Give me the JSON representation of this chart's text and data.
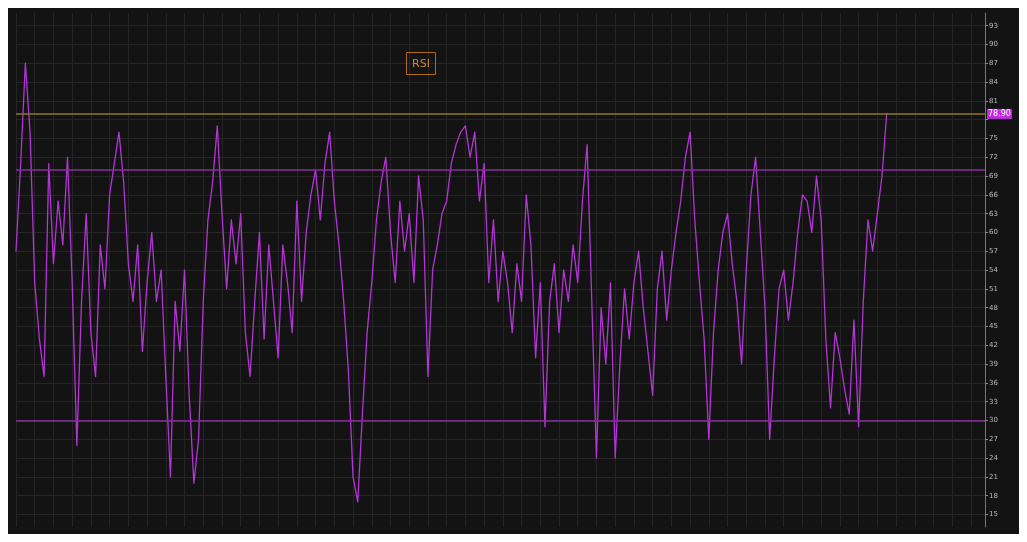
{
  "chart_data": {
    "type": "line",
    "title": "RSI",
    "categories": [
      null,
      null,
      null,
      null,
      null,
      null,
      null,
      null,
      null,
      null,
      null,
      null,
      null,
      null,
      null,
      null,
      null,
      null,
      null,
      null,
      null,
      null,
      null,
      null,
      null,
      null,
      null,
      null,
      null,
      null,
      null,
      null,
      null,
      null,
      null,
      null,
      null,
      null,
      null,
      null,
      null,
      null,
      null,
      null,
      null,
      null,
      null,
      null,
      null,
      null,
      null,
      null,
      null,
      null,
      null,
      null,
      null,
      null,
      null,
      null,
      null,
      null,
      null,
      null,
      null,
      null,
      null,
      null,
      null,
      null,
      null,
      null,
      null,
      null,
      null,
      null,
      null,
      null,
      null,
      null,
      null,
      null,
      null,
      null,
      null,
      null,
      null,
      null,
      null,
      null,
      null,
      null,
      null,
      null,
      null,
      null,
      null,
      null,
      null,
      null,
      null,
      null,
      null,
      null,
      null,
      null,
      null,
      null,
      null,
      null,
      null,
      null,
      null,
      null,
      null,
      null,
      null,
      null,
      null,
      null,
      null,
      null,
      null,
      null,
      null,
      null,
      null,
      null,
      null,
      null,
      null,
      null,
      null,
      null,
      null,
      null,
      null,
      null,
      null,
      null,
      null,
      null,
      null,
      null,
      null,
      null,
      null,
      null,
      null,
      null,
      null,
      null,
      null,
      null,
      null,
      null,
      null,
      null,
      null,
      null,
      null,
      null,
      null,
      null,
      null,
      null,
      null,
      null,
      null,
      null,
      null,
      null,
      null,
      null,
      null,
      null,
      null,
      null,
      null,
      null,
      null,
      null,
      null,
      null,
      null,
      null,
      null
    ],
    "series": [
      {
        "color": "#b434d6",
        "values": [
          57,
          71,
          87,
          76,
          52,
          43,
          37,
          71,
          55,
          65,
          58,
          72,
          52,
          26,
          49,
          63,
          44,
          37,
          58,
          51,
          66,
          71,
          76,
          68,
          55,
          49,
          58,
          41,
          52,
          60,
          49,
          54,
          37,
          21,
          49,
          41,
          54,
          34,
          20,
          27,
          49,
          62,
          68,
          77,
          63,
          51,
          62,
          55,
          63,
          44,
          37,
          49,
          60,
          43,
          58,
          49,
          40,
          58,
          52,
          44,
          65,
          49,
          60,
          66,
          70,
          62,
          71,
          76,
          65,
          58,
          49,
          38,
          21,
          17,
          31,
          44,
          52,
          62,
          68,
          72,
          60,
          52,
          65,
          57,
          63,
          52,
          69,
          62,
          37,
          54,
          58,
          63,
          65,
          71,
          74,
          76,
          77,
          72,
          76,
          65,
          71,
          52,
          62,
          49,
          57,
          52,
          44,
          55,
          49,
          66,
          58,
          40,
          52,
          29,
          49,
          55,
          44,
          54,
          49,
          58,
          52,
          65,
          74,
          49,
          24,
          48,
          39,
          52,
          24,
          39,
          51,
          43,
          52,
          57,
          48,
          41,
          34,
          51,
          57,
          46,
          54,
          60,
          65,
          72,
          76,
          62,
          52,
          43,
          27,
          44,
          54,
          60,
          63,
          55,
          49,
          39,
          54,
          66,
          72,
          60,
          48,
          27,
          40,
          51,
          54,
          46,
          52,
          60,
          66,
          65,
          60,
          69,
          62,
          43,
          32,
          44,
          40,
          35,
          31,
          46,
          29,
          49,
          62,
          57,
          63,
          69,
          79
        ]
      }
    ],
    "ylim": [
      13,
      95
    ],
    "yticks": [
      15,
      18,
      21,
      24,
      27,
      30,
      33,
      36,
      39,
      42,
      45,
      48,
      51,
      54,
      57,
      60,
      63,
      66,
      69,
      72,
      75,
      {
        "value": 78,
        "label": null
      },
      81,
      84,
      87,
      90,
      93
    ],
    "ref_lines": [
      {
        "axis": "y",
        "value": 70,
        "color": "#8a2c9e"
      },
      {
        "axis": "y",
        "value": 30,
        "color": "#8a2c9e"
      },
      {
        "axis": "y",
        "value": 78.9,
        "label": "78.90",
        "color": "#8c7a1e"
      }
    ],
    "grid": true,
    "line_style": "solid"
  }
}
